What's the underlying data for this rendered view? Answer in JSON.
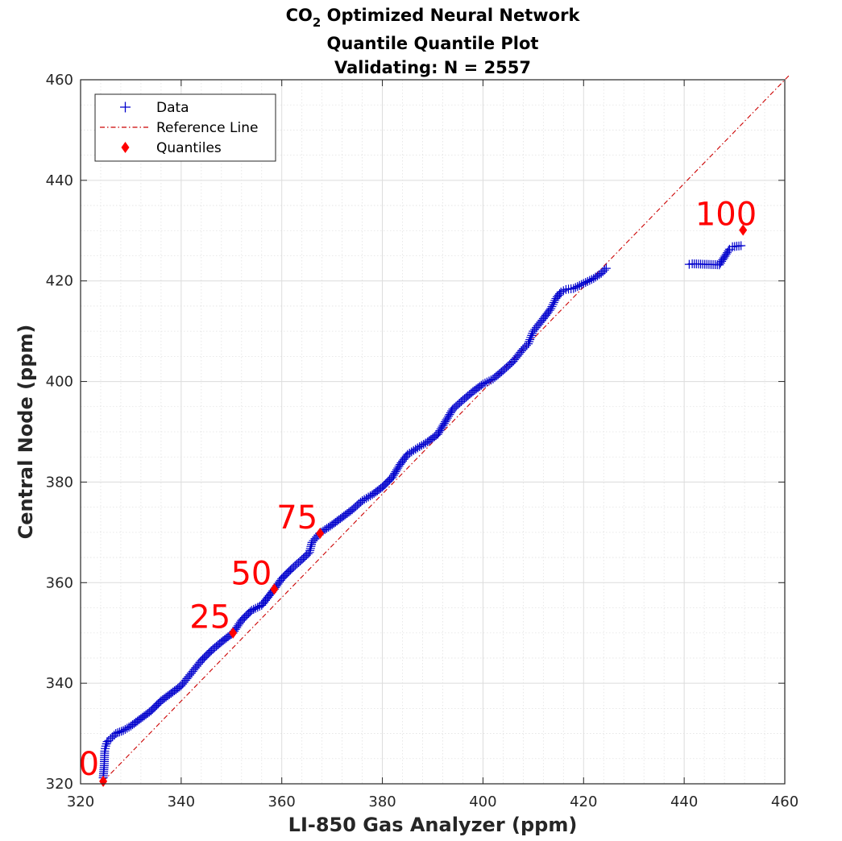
{
  "chart_data": {
    "type": "scatter",
    "title": "CO2 Optimized Neural Network",
    "title_main": "CO",
    "title_sub": "2",
    "title_rest": " Optimized Neural Network",
    "subtitle": "Quantile Quantile Plot",
    "subtitle2": "Validating: N = 2557",
    "xlabel": "LI-850 Gas Analyzer (ppm)",
    "ylabel": "Central Node (ppm)",
    "xlim": [
      320,
      460
    ],
    "ylim": [
      320,
      460
    ],
    "xticks": [
      320,
      340,
      360,
      380,
      400,
      420,
      440,
      460
    ],
    "yticks": [
      320,
      340,
      360,
      380,
      400,
      420,
      440,
      460
    ],
    "ytick_labels": [
      "320",
      "340",
      "360",
      "380",
      "400",
      "420",
      "440",
      "460"
    ],
    "xtick_labels": [
      "320",
      "340",
      "360",
      "380",
      "400",
      "420",
      "440",
      "460"
    ],
    "grid": true,
    "legend_position": "top-left",
    "legend": [
      "Data",
      "Reference Line",
      "Quantiles"
    ],
    "colors": {
      "data": "#0000cc",
      "reference": "#cc0000",
      "quantile": "#ff0000"
    },
    "series": [
      {
        "name": "Data",
        "points": [
          [
            324.5,
            321.2
          ],
          [
            324.7,
            323.6
          ],
          [
            324.8,
            326.5
          ],
          [
            325.0,
            327.5
          ],
          [
            325.3,
            328.4
          ],
          [
            325.6,
            328.6
          ],
          [
            326.0,
            329.0
          ],
          [
            327.0,
            330.0
          ],
          [
            328.5,
            330.6
          ],
          [
            330.0,
            331.5
          ],
          [
            332.0,
            333.0
          ],
          [
            334.0,
            334.5
          ],
          [
            336.0,
            336.5
          ],
          [
            338.0,
            338.0
          ],
          [
            340.0,
            339.5
          ],
          [
            342.0,
            342.0
          ],
          [
            344.0,
            344.5
          ],
          [
            346.0,
            346.5
          ],
          [
            348.0,
            348.2
          ],
          [
            350.3,
            350.0
          ],
          [
            352.0,
            352.5
          ],
          [
            354.0,
            354.5
          ],
          [
            356.0,
            355.5
          ],
          [
            358.5,
            358.7
          ],
          [
            360.0,
            360.8
          ],
          [
            362.0,
            362.8
          ],
          [
            364.0,
            364.6
          ],
          [
            365.5,
            366.0
          ],
          [
            366.0,
            368.0
          ],
          [
            367.5,
            369.8
          ],
          [
            370.0,
            371.5
          ],
          [
            372.0,
            373.0
          ],
          [
            374.0,
            374.5
          ],
          [
            376.0,
            376.3
          ],
          [
            378.0,
            377.5
          ],
          [
            380.0,
            379.0
          ],
          [
            382.0,
            381.0
          ],
          [
            383.5,
            383.5
          ],
          [
            385.0,
            385.5
          ],
          [
            387.0,
            386.8
          ],
          [
            389.0,
            388.0
          ],
          [
            391.0,
            389.5
          ],
          [
            392.5,
            392.0
          ],
          [
            394.0,
            394.5
          ],
          [
            396.0,
            396.3
          ],
          [
            398.0,
            398.0
          ],
          [
            400.0,
            399.5
          ],
          [
            402.0,
            400.5
          ],
          [
            404.0,
            402.2
          ],
          [
            406.0,
            404.0
          ],
          [
            408.0,
            406.5
          ],
          [
            409.0,
            407.5
          ],
          [
            410.0,
            410.0
          ],
          [
            412.0,
            412.5
          ],
          [
            413.5,
            414.5
          ],
          [
            414.5,
            416.5
          ],
          [
            415.5,
            417.8
          ],
          [
            416.5,
            418.3
          ],
          [
            418.0,
            418.5
          ],
          [
            420.0,
            419.5
          ],
          [
            422.0,
            420.5
          ],
          [
            423.5,
            421.5
          ],
          [
            424.5,
            422.5
          ],
          [
            441.0,
            423.3
          ],
          [
            441.6,
            423.4
          ],
          [
            447.0,
            423.2
          ],
          [
            449.0,
            426.3
          ],
          [
            449.6,
            426.8
          ],
          [
            451.3,
            427.0
          ]
        ]
      },
      {
        "name": "Reference Line",
        "line": [
          [
            324.5,
            320.5
          ],
          [
            461.0,
            461.0
          ]
        ]
      }
    ],
    "quantiles": [
      {
        "label": "0",
        "x": 324.5,
        "y": 320.5
      },
      {
        "label": "25",
        "x": 350.3,
        "y": 350.0
      },
      {
        "label": "50",
        "x": 358.5,
        "y": 358.7
      },
      {
        "label": "75",
        "x": 367.6,
        "y": 369.8
      },
      {
        "label": "100",
        "x": 451.7,
        "y": 430.1
      }
    ]
  }
}
